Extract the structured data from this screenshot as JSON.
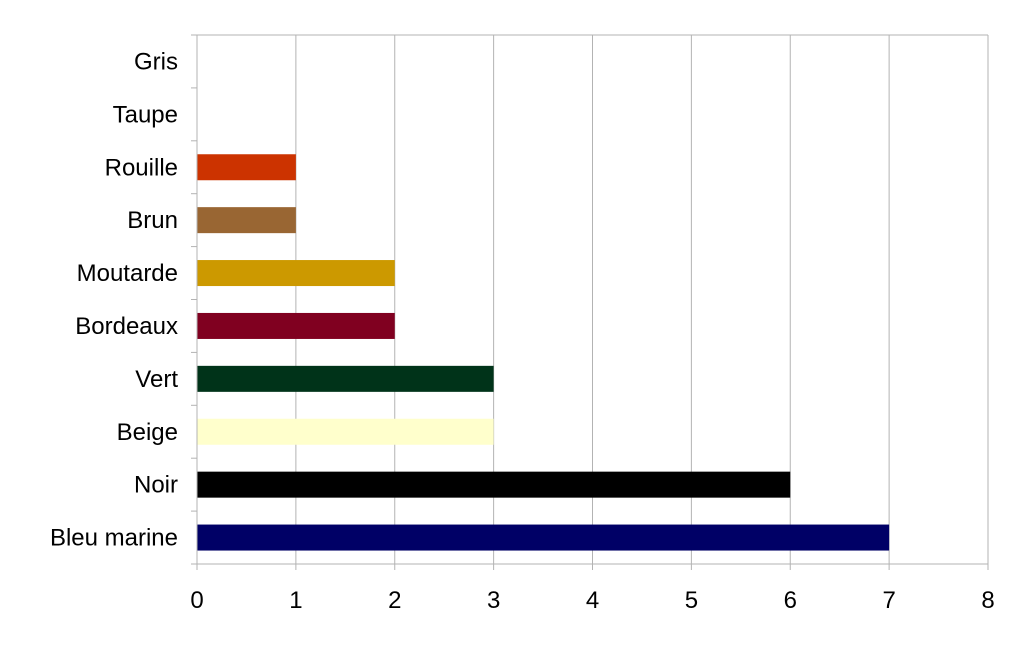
{
  "chart_data": {
    "type": "bar",
    "orientation": "horizontal",
    "categories": [
      "Gris",
      "Taupe",
      "Rouille",
      "Brun",
      "Moutarde",
      "Bordeaux",
      "Vert",
      "Beige",
      "Noir",
      "Bleu marine"
    ],
    "values": [
      0,
      0,
      1,
      1,
      2,
      2,
      3,
      3,
      6,
      7
    ],
    "colors": [
      "#808080",
      "#8b7d6b",
      "#cc3300",
      "#996633",
      "#cc9900",
      "#800020",
      "#003319",
      "#ffffcc",
      "#000000",
      "#000066"
    ],
    "xlim": [
      0,
      8
    ],
    "xticks": [
      0,
      1,
      2,
      3,
      4,
      5,
      6,
      7,
      8
    ],
    "grid": true,
    "title": "",
    "xlabel": "",
    "ylabel": ""
  }
}
